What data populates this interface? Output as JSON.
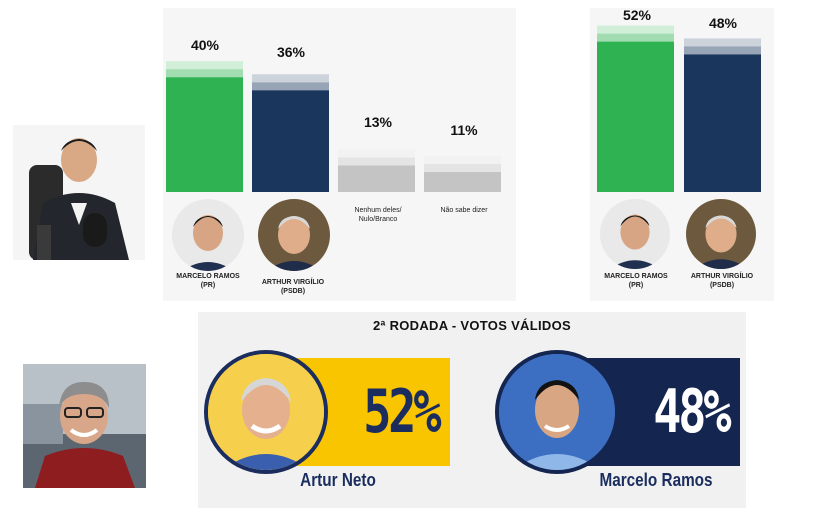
{
  "chart_data": [
    {
      "type": "bar",
      "categories": [
        "MARCELO RAMOS (PR)",
        "ARTHUR VIRGÍLIO (PSDB)",
        "Nenhum deles/ Nulo/Branco",
        "Não sabe dizer"
      ],
      "values": [
        40,
        36,
        13,
        11
      ],
      "data_labels": [
        "40%",
        "36%",
        "13%",
        "11%"
      ],
      "colors": [
        "#2fb352",
        "#1b365d",
        "#c4c4c4",
        "#c4c4c4"
      ]
    },
    {
      "type": "bar",
      "categories": [
        "MARCELO RAMOS (PR)",
        "ARTHUR VIRGÍLIO (PSDB)"
      ],
      "values": [
        52,
        48
      ],
      "data_labels": [
        "52%",
        "48%"
      ],
      "colors": [
        "#2fb352",
        "#1b365d"
      ]
    },
    {
      "type": "bar",
      "title": "2ª RODADA - VOTOS VÁLIDOS",
      "categories": [
        "Artur Neto",
        "Marcelo Ramos"
      ],
      "values": [
        52,
        48
      ],
      "data_labels": [
        "52%",
        "48%"
      ],
      "colors": [
        "#f9c400",
        "#14254f"
      ]
    }
  ],
  "left_chart": {
    "labels": [
      "40%",
      "36%",
      "13%",
      "11%"
    ],
    "cand1": {
      "line1": "MARCELO RAMOS",
      "line2": "(PR)"
    },
    "cand2": {
      "line1": "ARTHUR VIRGÍLIO",
      "line2": "(PSDB)"
    },
    "other1": {
      "line1": "Nenhum deles/",
      "line2": "Nulo/Branco"
    },
    "other2": {
      "line1": "Não sabe dizer"
    }
  },
  "right_chart": {
    "labels": [
      "52%",
      "48%"
    ],
    "cand1": {
      "line1": "MARCELO RAMOS",
      "line2": "(PR)"
    },
    "cand2": {
      "line1": "ARTHUR VIRGÍLIO",
      "line2": "(PSDB)"
    }
  },
  "runoff": {
    "title": "2ª RODADA - VOTOS VÁLIDOS",
    "left": {
      "value": "52%",
      "name": "Artur Neto"
    },
    "right": {
      "value": "48%",
      "name": "Marcelo Ramos"
    }
  },
  "colors": {
    "green": "#2fb352",
    "navy": "#1b365d",
    "grey": "#c4c4c4",
    "yellow": "#f9c400",
    "dark_navy": "#14254f",
    "runoff_name_navy": "#1a2d5e"
  },
  "icons": [
    "host-photo",
    "candidate-avatar"
  ]
}
